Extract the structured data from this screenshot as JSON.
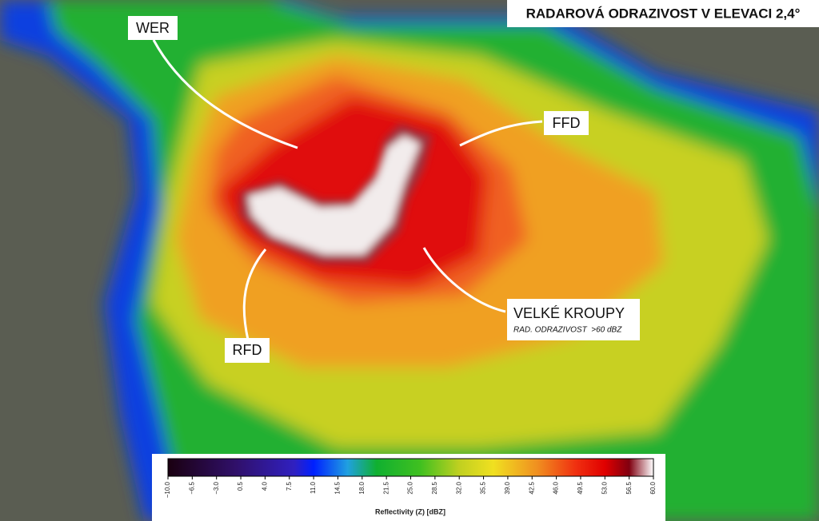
{
  "title": "RADAROVÁ ODRAZIVOST V ELEVACI 2,4°",
  "annotations": [
    {
      "label": "WER"
    },
    {
      "label": "FFD"
    },
    {
      "label": "RFD"
    },
    {
      "label": "VELKÉ KROUPY",
      "note": "RAD. ODRAZIVOST  >60 dBZ"
    }
  ],
  "colorbar": {
    "label": "Reflectivity (Z) [dBZ]",
    "xlim": [
      -10,
      60
    ],
    "xticks": [
      {
        "value": -10,
        "label": "−10.0"
      },
      {
        "value": -6.5,
        "label": "−6.5"
      },
      {
        "value": -3,
        "label": "−3.0"
      },
      0.5,
      {
        "value": 4,
        "label": "4.0"
      },
      7.5,
      {
        "value": 11,
        "label": "11.0"
      },
      14.5,
      {
        "value": 18,
        "label": "18.0"
      },
      21.5,
      {
        "value": 25,
        "label": "25.0"
      },
      28.5,
      {
        "value": 32,
        "label": "32.0"
      },
      35.5,
      {
        "value": 39,
        "label": "39.0"
      },
      42.5,
      {
        "value": 46,
        "label": "46.0"
      },
      49.5,
      {
        "value": 53,
        "label": "53.0"
      },
      56.5,
      {
        "value": 60,
        "label": "60.0"
      }
    ]
  }
}
